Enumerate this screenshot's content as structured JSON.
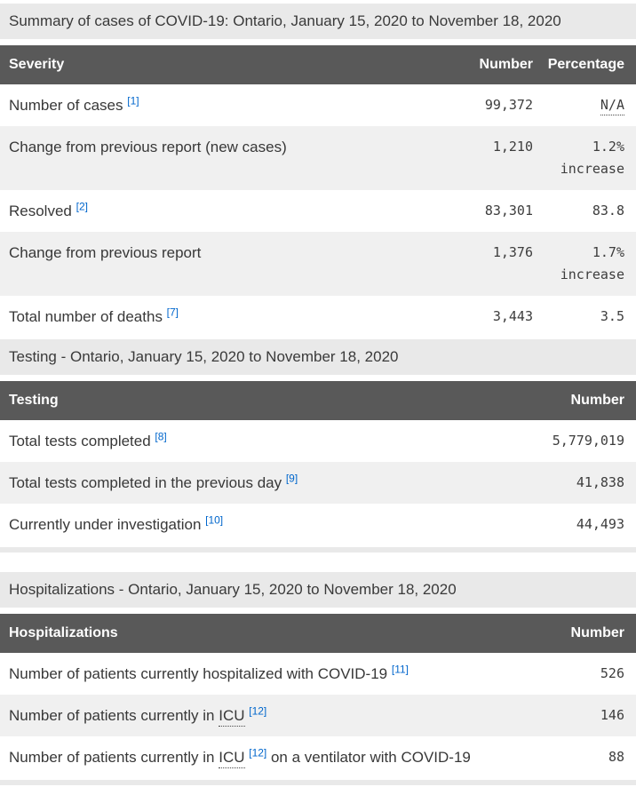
{
  "colors": {
    "header_bg": "#595959",
    "header_text": "#ffffff",
    "caption_bg": "#e9e9e9",
    "row_stripe": "#f0f0f0",
    "link": "#0066cc",
    "text": "#383838"
  },
  "tables": [
    {
      "caption": "Summary of cases of COVID-19: Ontario, January 15, 2020 to November 18, 2020",
      "columns": [
        "Severity",
        "Number",
        "Percentage"
      ],
      "rows": [
        {
          "label_segments": [
            {
              "text": "Number of cases "
            },
            {
              "sup": "[1]"
            }
          ],
          "number": "99,372",
          "percentage": {
            "text": "N/A",
            "abbr": true
          }
        },
        {
          "label_segments": [
            {
              "text": "Change from previous report (new cases)"
            }
          ],
          "number": "1,210",
          "percentage": {
            "text": "1.2% increase",
            "abbr": false
          }
        },
        {
          "label_segments": [
            {
              "text": "Resolved "
            },
            {
              "sup": "[2]"
            }
          ],
          "number": "83,301",
          "percentage": {
            "text": "83.8",
            "abbr": false
          }
        },
        {
          "label_segments": [
            {
              "text": "Change from previous report"
            }
          ],
          "number": "1,376",
          "percentage": {
            "text": "1.7% increase",
            "abbr": false
          }
        },
        {
          "label_segments": [
            {
              "text": "Total number of deaths "
            },
            {
              "sup": "[7]"
            }
          ],
          "number": "3,443",
          "percentage": {
            "text": "3.5",
            "abbr": false
          }
        }
      ]
    },
    {
      "caption": "Testing - Ontario, January 15, 2020 to November 18, 2020",
      "columns": [
        "Testing",
        "Number"
      ],
      "rows": [
        {
          "label_segments": [
            {
              "text": "Total tests completed "
            },
            {
              "sup": "[8]"
            }
          ],
          "number": "5,779,019"
        },
        {
          "label_segments": [
            {
              "text": "Total tests completed in the previous day "
            },
            {
              "sup": "[9]"
            }
          ],
          "number": "41,838"
        },
        {
          "label_segments": [
            {
              "text": "Currently under investigation "
            },
            {
              "sup": "[10]"
            }
          ],
          "number": "44,493"
        }
      ]
    },
    {
      "caption": "Hospitalizations - Ontario, January 15, 2020 to November 18, 2020",
      "columns": [
        "Hospitalizations",
        "Number"
      ],
      "rows": [
        {
          "label_segments": [
            {
              "text": "Number of patients currently hospitalized with COVID-19 "
            },
            {
              "sup": "[11]"
            }
          ],
          "number": "526"
        },
        {
          "label_segments": [
            {
              "text": "Number of patients currently in "
            },
            {
              "text": "ICU",
              "abbr": true
            },
            {
              "text": " "
            },
            {
              "sup": "[12]"
            }
          ],
          "number": "146"
        },
        {
          "label_segments": [
            {
              "text": "Number of patients currently in "
            },
            {
              "text": "ICU",
              "abbr": true
            },
            {
              "text": " "
            },
            {
              "sup": "[12]"
            },
            {
              "text": " on a ventilator with COVID-19"
            }
          ],
          "number": "88"
        }
      ]
    }
  ]
}
